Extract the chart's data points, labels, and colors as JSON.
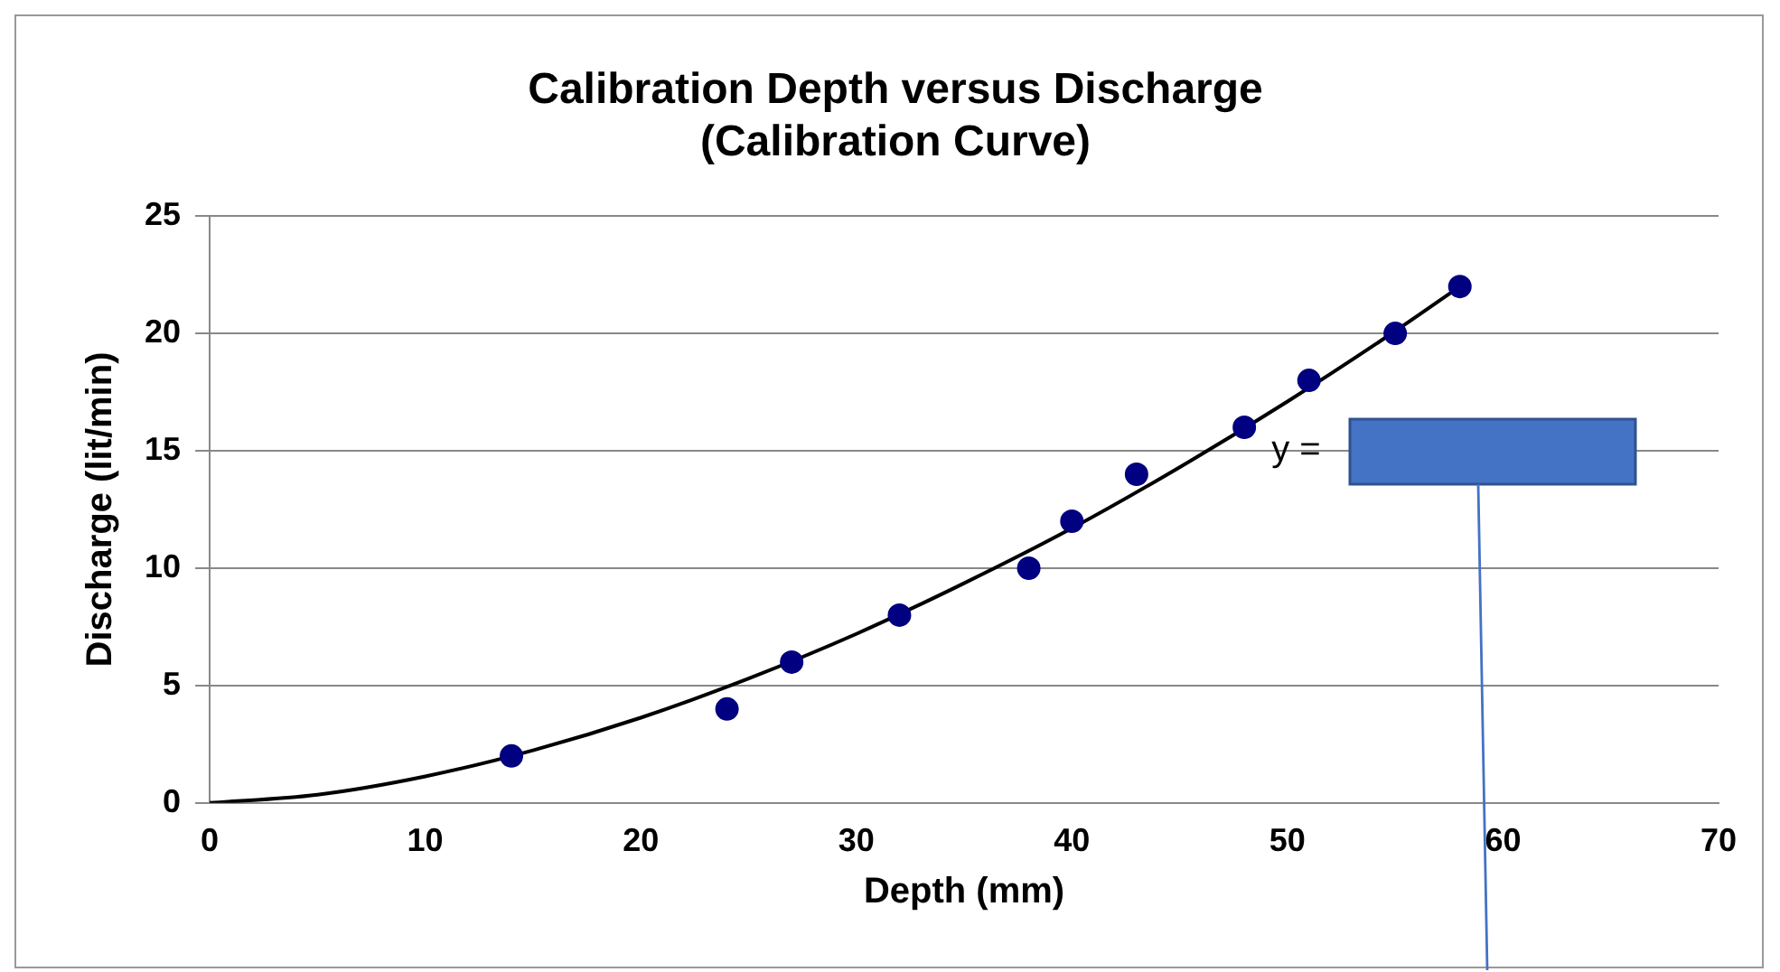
{
  "chart_data": {
    "type": "scatter",
    "title": "Calibration Depth versus Discharge\n(Calibration Curve)",
    "xlabel": "Depth (mm)",
    "ylabel": "Discharge (lit/min)",
    "series": [
      {
        "color": "#000080",
        "x": [
          14,
          24,
          27,
          32,
          38,
          40,
          43,
          48,
          51,
          55,
          58
        ],
        "values": [
          2,
          4,
          6,
          8,
          10,
          12,
          14,
          16,
          18,
          20,
          22
        ]
      },
      {
        "type": "line",
        "color": "#000000",
        "marker": "none",
        "x": [
          0,
          5,
          10,
          15,
          20,
          25,
          30,
          35,
          40,
          45,
          50,
          55,
          58
        ],
        "values": [
          0,
          0.35,
          1.13,
          2.24,
          3.63,
          5.3,
          7.2,
          9.36,
          11.7,
          14.3,
          17.1,
          20.1,
          22
        ]
      }
    ],
    "annotations": [
      "y ="
    ],
    "xlim": [
      0,
      70
    ],
    "xticks": [
      0,
      10,
      20,
      30,
      40,
      50,
      60,
      70
    ],
    "ylim": [
      0,
      25
    ],
    "yticks": [
      0,
      5,
      10,
      15,
      20,
      25
    ],
    "grid": "y",
    "legend": false,
    "marker": "circle"
  }
}
